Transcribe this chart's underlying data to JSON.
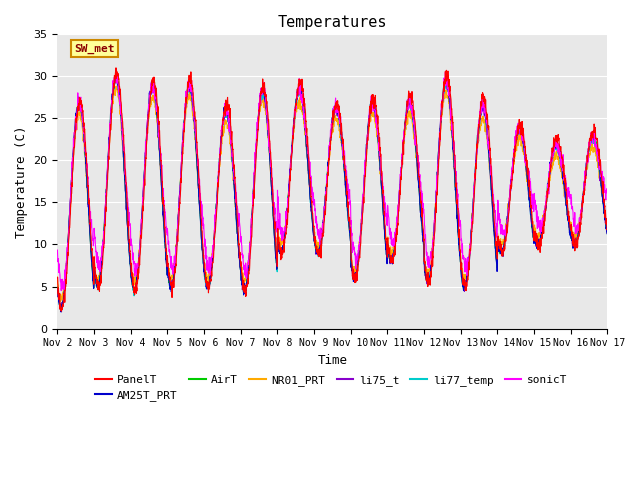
{
  "title": "Temperatures",
  "ylabel": "Temperature (C)",
  "xlabel": "Time",
  "ylim": [
    0,
    35
  ],
  "yticks": [
    0,
    5,
    10,
    15,
    20,
    25,
    30,
    35
  ],
  "xtick_labels": [
    "Nov 2",
    "Nov 3",
    "Nov 4",
    "Nov 5",
    "Nov 6",
    "Nov 7",
    "Nov 8",
    "Nov 9",
    "Nov 10",
    "Nov 11",
    "Nov 12",
    "Nov 13",
    "Nov 14",
    "Nov 15",
    "Nov 16",
    "Nov 17"
  ],
  "bg_color": "#e8e8e8",
  "fig_color": "#ffffff",
  "series_colors": {
    "PanelT": "#ff0000",
    "AM25T_PRT": "#0000cc",
    "AirT": "#00cc00",
    "NR01_PRT": "#ffaa00",
    "li75_t": "#8800cc",
    "li77_temp": "#00cccc",
    "sonicT": "#ff00ff"
  },
  "annotation_text": "SW_met",
  "annotation_bg": "#ffff99",
  "annotation_border": "#cc8800"
}
